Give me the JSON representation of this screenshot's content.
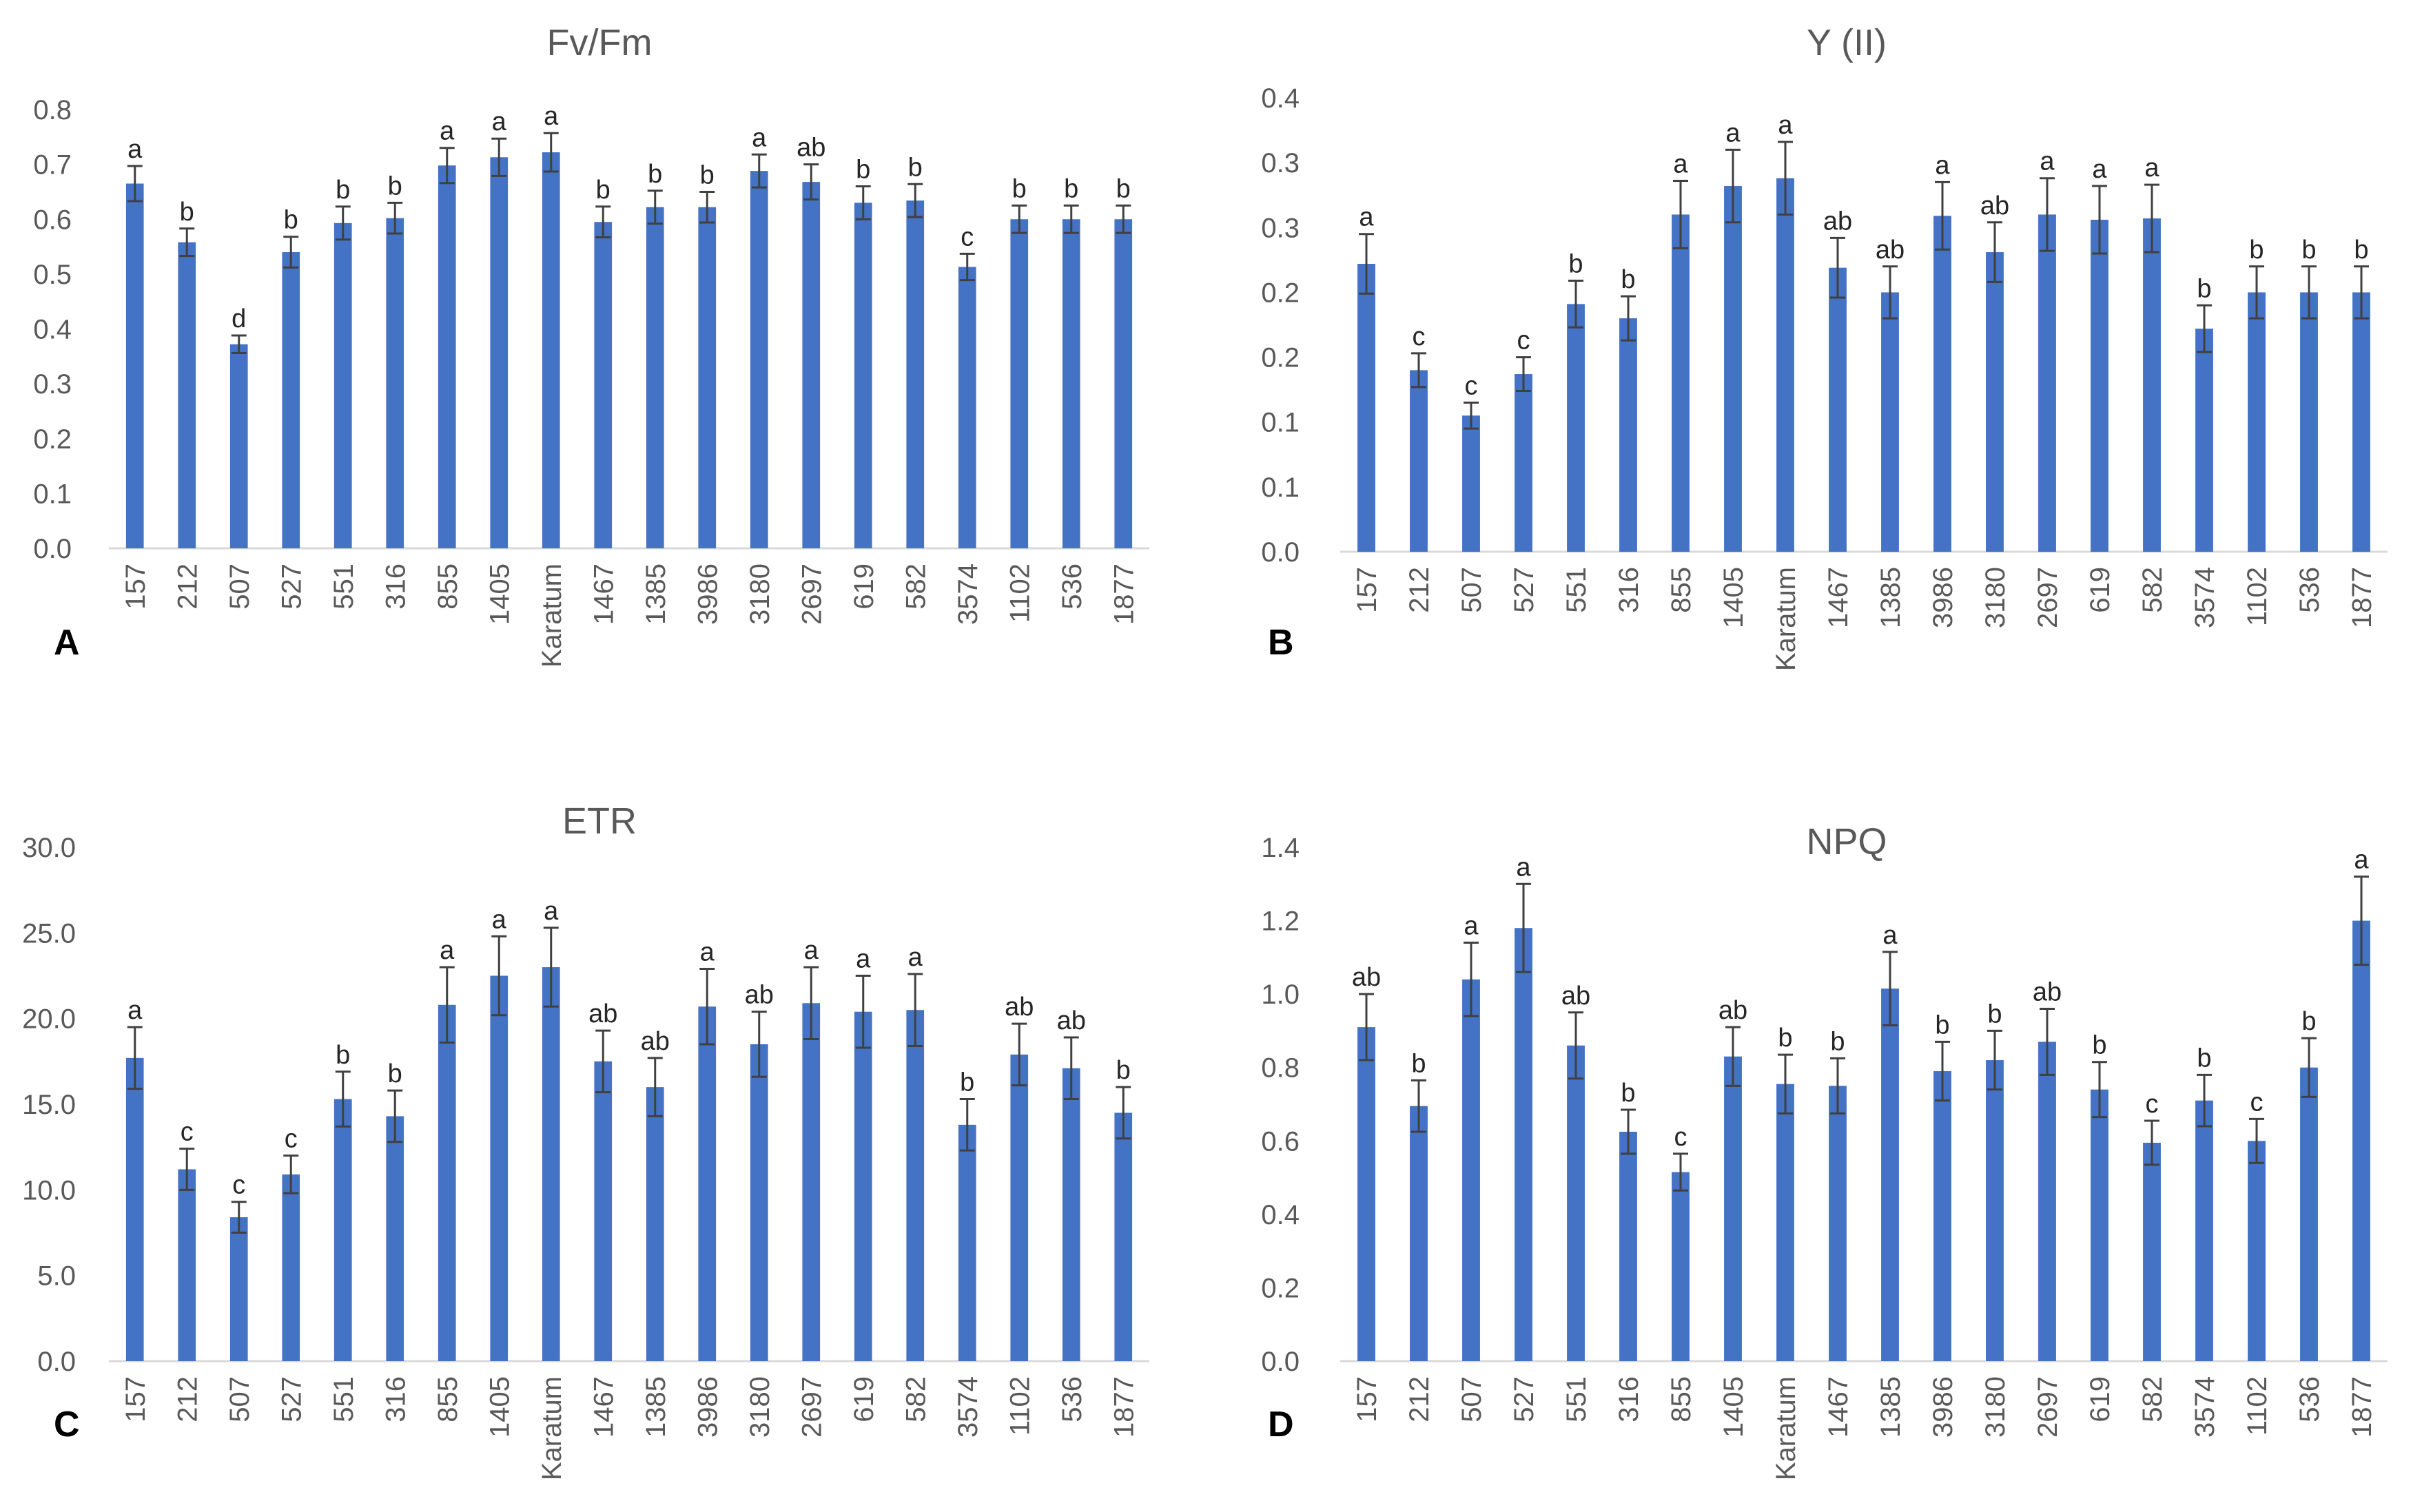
{
  "chart_data": [
    {
      "type": "bar",
      "panel": "A",
      "title": "Fv/Fm",
      "xlabel": "",
      "ylabel": "",
      "ylim": [
        0,
        0.8
      ],
      "yticks": [
        "0.0",
        "0.1",
        "0.2",
        "0.3",
        "0.4",
        "0.5",
        "0.6",
        "0.7",
        "0.8"
      ],
      "categories": [
        "157",
        "212",
        "507",
        "527",
        "551",
        "316",
        "855",
        "1405",
        "Karatum",
        "1467",
        "1385",
        "3986",
        "3180",
        "2697",
        "619",
        "582",
        "3574",
        "1102",
        "536",
        "1877"
      ],
      "values": [
        0.665,
        0.558,
        0.372,
        0.54,
        0.593,
        0.602,
        0.698,
        0.713,
        0.722,
        0.595,
        0.622,
        0.622,
        0.688,
        0.668,
        0.63,
        0.634,
        0.513,
        0.6,
        0.6,
        0.6
      ],
      "errors": [
        0.032,
        0.025,
        0.016,
        0.028,
        0.03,
        0.028,
        0.032,
        0.034,
        0.035,
        0.028,
        0.03,
        0.028,
        0.03,
        0.032,
        0.03,
        0.03,
        0.024,
        0.025,
        0.025,
        0.025
      ],
      "letters": [
        "a",
        "b",
        "d",
        "b",
        "b",
        "b",
        "a",
        "a",
        "a",
        "b",
        "b",
        "b",
        "a",
        "ab",
        "b",
        "b",
        "c",
        "b",
        "b",
        "b"
      ]
    },
    {
      "type": "bar",
      "panel": "B",
      "title": "Y (II)",
      "xlabel": "",
      "ylabel": "",
      "ylim": [
        0,
        0.35
      ],
      "yticks": [
        "0.0",
        "0.1",
        "0.1",
        "0.2",
        "0.2",
        "0.3",
        "0.3",
        "0.4"
      ],
      "categories": [
        "157",
        "212",
        "507",
        "527",
        "551",
        "316",
        "855",
        "1405",
        "Karatum",
        "1467",
        "1385",
        "3986",
        "3180",
        "2697",
        "619",
        "582",
        "3574",
        "1102",
        "536",
        "1877"
      ],
      "values": [
        0.222,
        0.14,
        0.105,
        0.137,
        0.191,
        0.18,
        0.26,
        0.282,
        0.288,
        0.219,
        0.2,
        0.259,
        0.231,
        0.26,
        0.256,
        0.257,
        0.172,
        0.2,
        0.2,
        0.2
      ],
      "errors": [
        0.023,
        0.013,
        0.01,
        0.013,
        0.018,
        0.017,
        0.026,
        0.028,
        0.028,
        0.023,
        0.02,
        0.026,
        0.023,
        0.028,
        0.026,
        0.026,
        0.018,
        0.02,
        0.02,
        0.02
      ],
      "letters": [
        "a",
        "c",
        "c",
        "c",
        "b",
        "b",
        "a",
        "a",
        "a",
        "ab",
        "ab",
        "a",
        "ab",
        "a",
        "a",
        "a",
        "b",
        "b",
        "b",
        "b"
      ]
    },
    {
      "type": "bar",
      "panel": "C",
      "title": "ETR",
      "xlabel": "",
      "ylabel": "",
      "ylim": [
        0,
        30
      ],
      "yticks": [
        "0.0",
        "5.0",
        "10.0",
        "15.0",
        "20.0",
        "25.0",
        "30.0"
      ],
      "categories": [
        "157",
        "212",
        "507",
        "527",
        "551",
        "316",
        "855",
        "1405",
        "Karatum",
        "1467",
        "1385",
        "3986",
        "3180",
        "2697",
        "619",
        "582",
        "3574",
        "1102",
        "536",
        "1877"
      ],
      "values": [
        17.7,
        11.2,
        8.4,
        10.9,
        15.3,
        14.3,
        20.8,
        22.5,
        23.0,
        17.5,
        16.0,
        20.7,
        18.5,
        20.9,
        20.4,
        20.5,
        13.8,
        17.9,
        17.1,
        14.5
      ],
      "errors": [
        1.8,
        1.2,
        0.9,
        1.1,
        1.6,
        1.5,
        2.2,
        2.3,
        2.3,
        1.8,
        1.7,
        2.2,
        1.9,
        2.1,
        2.1,
        2.1,
        1.5,
        1.8,
        1.8,
        1.5
      ],
      "letters": [
        "a",
        "c",
        "c",
        "c",
        "b",
        "b",
        "a",
        "a",
        "a",
        "ab",
        "ab",
        "a",
        "ab",
        "a",
        "a",
        "a",
        "b",
        "ab",
        "ab",
        "b"
      ]
    },
    {
      "type": "bar",
      "panel": "D",
      "title": "NPQ",
      "xlabel": "",
      "ylabel": "",
      "ylim": [
        0,
        1.4
      ],
      "yticks": [
        "0.0",
        "0.2",
        "0.4",
        "0.6",
        "0.8",
        "1.0",
        "1.2",
        "1.4"
      ],
      "categories": [
        "157",
        "212",
        "507",
        "527",
        "551",
        "316",
        "855",
        "1405",
        "Karatum",
        "1467",
        "1385",
        "3986",
        "3180",
        "2697",
        "619",
        "582",
        "3574",
        "1102",
        "536",
        "1877"
      ],
      "values": [
        0.91,
        0.695,
        1.04,
        1.18,
        0.86,
        0.625,
        0.515,
        0.83,
        0.755,
        0.75,
        1.015,
        0.79,
        0.82,
        0.87,
        0.74,
        0.595,
        0.71,
        0.6,
        0.8,
        1.2
      ],
      "errors": [
        0.09,
        0.07,
        0.1,
        0.12,
        0.09,
        0.06,
        0.05,
        0.08,
        0.08,
        0.075,
        0.1,
        0.08,
        0.08,
        0.09,
        0.075,
        0.06,
        0.07,
        0.06,
        0.08,
        0.12
      ],
      "letters": [
        "ab",
        "b",
        "a",
        "a",
        "ab",
        "b",
        "c",
        "ab",
        "b",
        "b",
        "a",
        "b",
        "b",
        "ab",
        "b",
        "c",
        "b",
        "c",
        "b",
        "a"
      ]
    }
  ],
  "colors": {
    "bar": "#4472C4",
    "axis": "#D9D9D9",
    "text": "#595959",
    "error": "#404040"
  }
}
